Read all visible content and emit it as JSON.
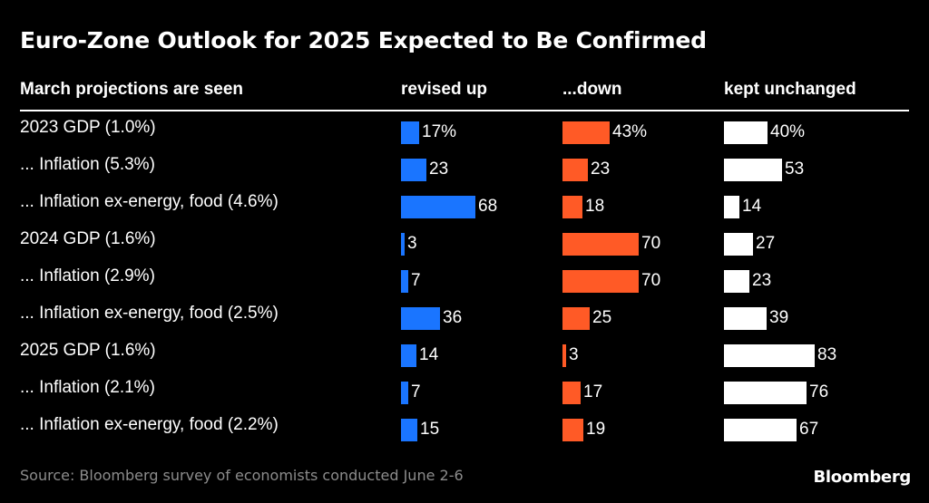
{
  "colors": {
    "background": "#000000",
    "revised_up": "#1a75ff",
    "revised_down": "#ff5a26",
    "unchanged": "#ffffff",
    "source_text": "#8c8c8c"
  },
  "chart_data": {
    "type": "bar",
    "orientation": "horizontal",
    "title": "Euro-Zone Outlook for 2025 Expected to Be Confirmed",
    "row_header": "March projections are seen",
    "categories": [
      "2023 GDP (1.0%)",
      "... Inflation (5.3%)",
      "... Inflation ex-energy, food (4.6%)",
      "2024 GDP (1.6%)",
      "... Inflation (2.9%)",
      "... Inflation ex-energy, food (2.5%)",
      "2025 GDP (1.6%)",
      "... Inflation (2.1%)",
      "... Inflation ex-energy, food (2.2%)"
    ],
    "series": [
      {
        "name": "revised up",
        "values": [
          17,
          23,
          68,
          3,
          7,
          36,
          14,
          7,
          15
        ],
        "labels": [
          "17%",
          "23",
          "68",
          "3",
          "7",
          "36",
          "14",
          "7",
          "15"
        ]
      },
      {
        "name": "...down",
        "values": [
          43,
          23,
          18,
          70,
          70,
          25,
          3,
          17,
          19
        ],
        "labels": [
          "43%",
          "23",
          "18",
          "70",
          "70",
          "25",
          "3",
          "17",
          "19"
        ]
      },
      {
        "name": "kept unchanged",
        "values": [
          40,
          53,
          14,
          27,
          23,
          39,
          83,
          76,
          67
        ],
        "labels": [
          "40%",
          "53",
          "14",
          "27",
          "23",
          "39",
          "83",
          "76",
          "67"
        ]
      }
    ],
    "unit": "%",
    "xlim": [
      0,
      100
    ],
    "grid": false,
    "legend": "column headers"
  },
  "footer": {
    "source": "Source: Bloomberg survey of economists conducted June 2-6",
    "brand": "Bloomberg"
  }
}
